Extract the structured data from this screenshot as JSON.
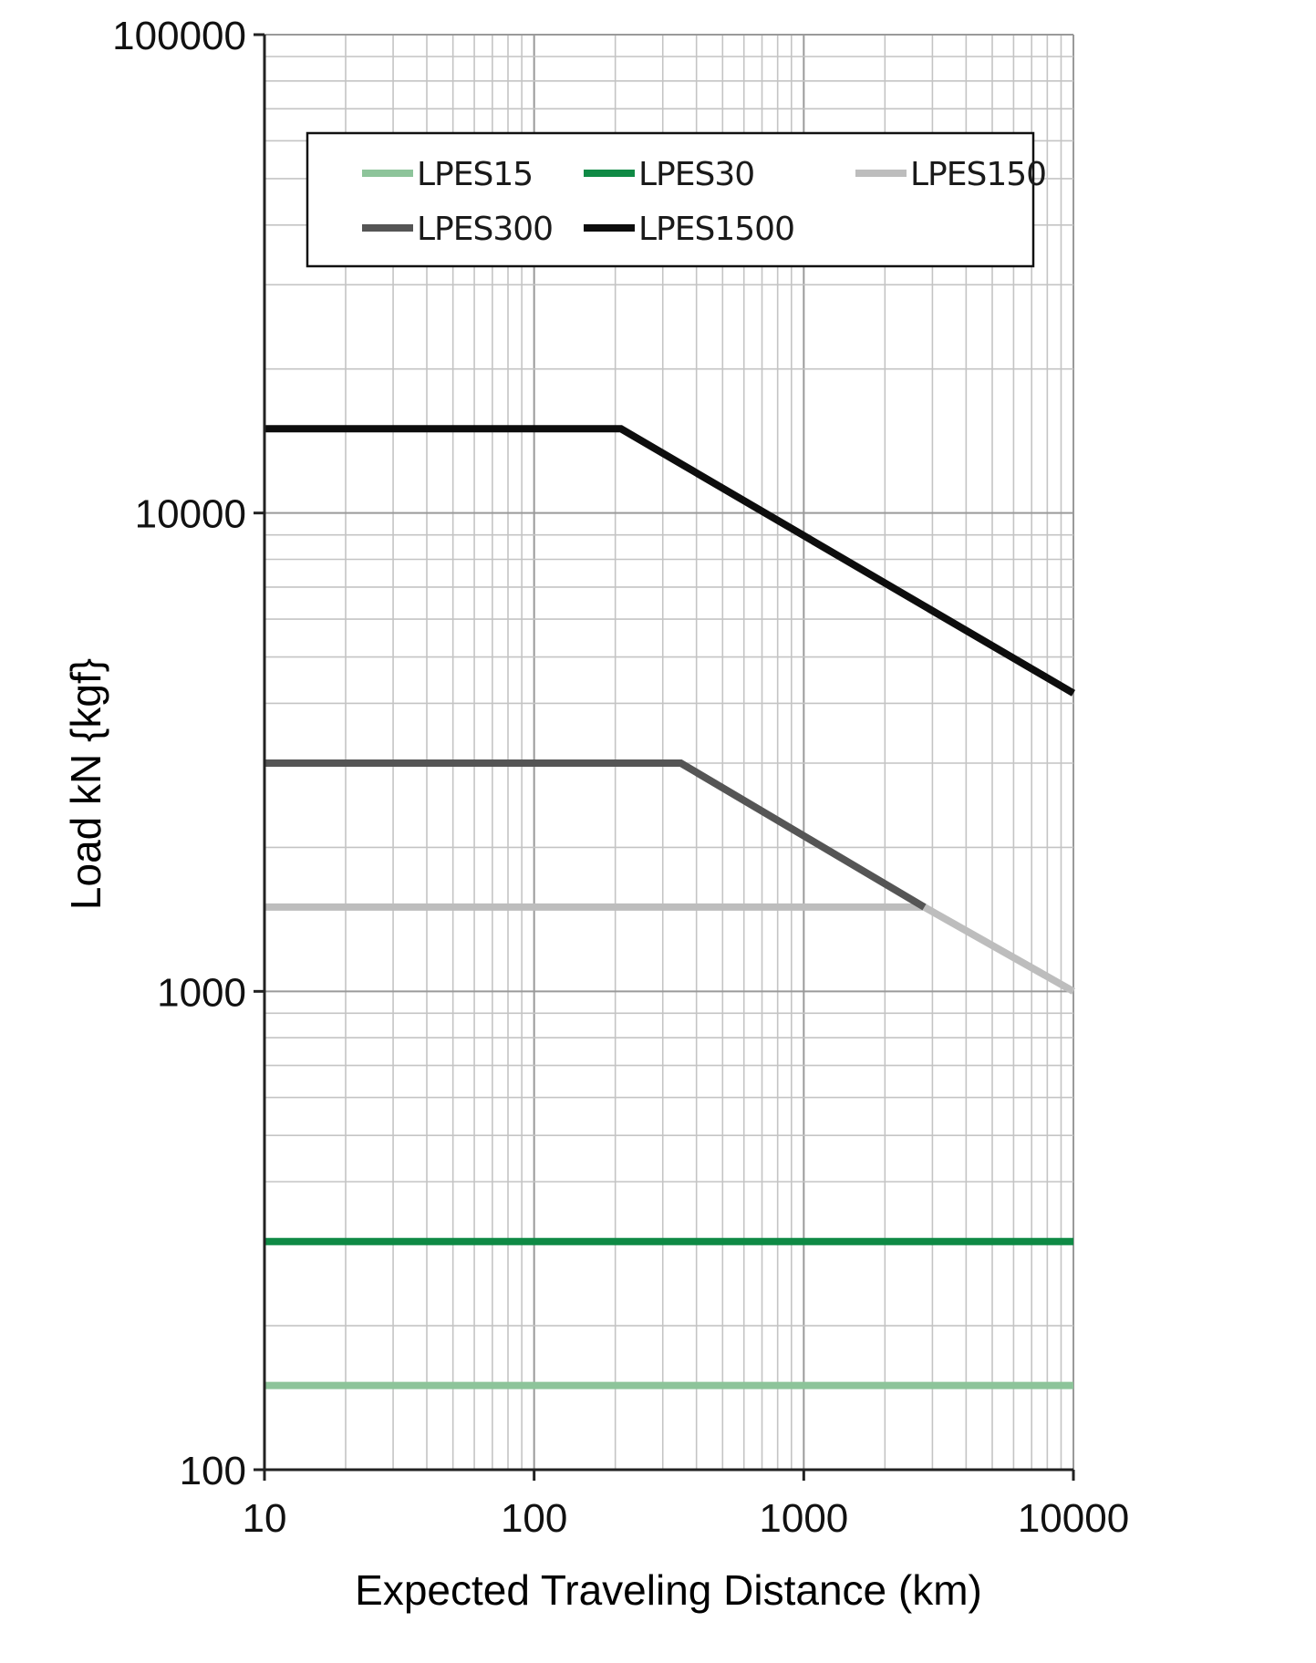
{
  "chart_data": {
    "type": "line",
    "xlabel": "Expected Traveling Distance (km)",
    "ylabel": "Load kN {kgf}",
    "xscale": "log",
    "yscale": "log",
    "xlim": [
      10,
      10000
    ],
    "ylim": [
      100,
      100000
    ],
    "x_ticks": [
      10,
      100,
      1000,
      10000
    ],
    "y_ticks": [
      100,
      1000,
      10000,
      100000
    ],
    "x_tick_labels": [
      "10",
      "100",
      "1000",
      "10000"
    ],
    "y_tick_labels": [
      "100",
      "1000",
      "10000",
      "100000"
    ],
    "grid": true,
    "legend": "top",
    "series": [
      {
        "name": "LPES15",
        "color": "#8dc49a",
        "points": [
          [
            10,
            150
          ],
          [
            10000,
            150
          ]
        ]
      },
      {
        "name": "LPES30",
        "color": "#0f8a45",
        "points": [
          [
            10,
            300
          ],
          [
            10000,
            300
          ]
        ]
      },
      {
        "name": "LPES150",
        "color": "#bdbdbd",
        "points": [
          [
            10,
            1500
          ],
          [
            2800,
            1500
          ],
          [
            10000,
            1000
          ]
        ]
      },
      {
        "name": "LPES300",
        "color": "#555555",
        "points": [
          [
            10,
            3000
          ],
          [
            350,
            3000
          ],
          [
            2800,
            1500
          ]
        ]
      },
      {
        "name": "LPES1500",
        "color": "#0d0d0d",
        "points": [
          [
            10,
            15000
          ],
          [
            210,
            15000
          ],
          [
            10000,
            4200
          ]
        ]
      }
    ]
  }
}
